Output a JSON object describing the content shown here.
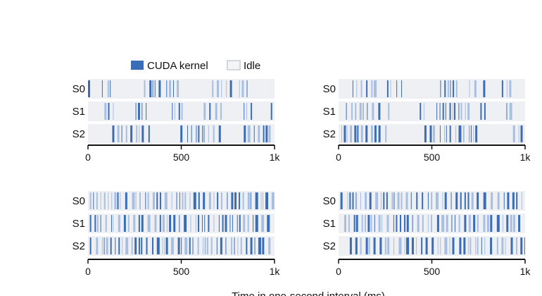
{
  "legend": {
    "items": [
      {
        "label": "CUDA kernel",
        "color": "#3a6db8",
        "style": "filled"
      },
      {
        "label": "Idle",
        "color": "#dfe3e8",
        "style": "outlined"
      }
    ]
  },
  "colors": {
    "kernel": "#3a6db8",
    "kernel_light": "#a9bfe2",
    "idle": "#eef0f3",
    "axis": "#111111"
  },
  "chart_data": [
    {
      "type": "timeline",
      "panel": "top-left",
      "rows": [
        "S0",
        "S1",
        "S2"
      ],
      "xlim": [
        0,
        1000
      ],
      "ticks": [
        0,
        500,
        1000
      ],
      "tick_labels": [
        "0",
        "500",
        "1k"
      ],
      "kernels": {
        "S0": [
          [
            0,
            28
          ],
          [
            75,
            122
          ],
          [
            300,
            385
          ],
          [
            420,
            488
          ],
          [
            665,
            770
          ],
          [
            810,
            860
          ]
        ],
        "S1": [
          [
            88,
            150
          ],
          [
            255,
            330
          ],
          [
            450,
            525
          ],
          [
            620,
            730
          ],
          [
            835,
            900
          ],
          [
            980,
            990
          ]
        ],
        "S2": [
          [
            130,
            330
          ],
          [
            495,
            705
          ],
          [
            835,
            990
          ]
        ]
      }
    },
    {
      "type": "timeline",
      "panel": "top-right",
      "rows": [
        "S0",
        "S1",
        "S2"
      ],
      "xlim": [
        0,
        1000
      ],
      "ticks": [
        0,
        500,
        1000
      ],
      "tick_labels": [
        "0",
        "500",
        "1k"
      ],
      "kernels": {
        "S0": [
          [
            75,
            150
          ],
          [
            175,
            200
          ],
          [
            260,
            280
          ],
          [
            310,
            345
          ],
          [
            545,
            650
          ],
          [
            700,
            730
          ],
          [
            775,
            790
          ],
          [
            875,
            920
          ]
        ],
        "S1": [
          [
            40,
            230
          ],
          [
            265,
            290
          ],
          [
            435,
            465
          ],
          [
            525,
            700
          ],
          [
            760,
            785
          ],
          [
            900,
            920
          ]
        ],
        "S2": [
          [
            15,
            255
          ],
          [
            460,
            740
          ],
          [
            935,
            1000
          ]
        ]
      }
    },
    {
      "type": "timeline",
      "panel": "bottom-left",
      "rows": [
        "S0",
        "S1",
        "S2"
      ],
      "xlim": [
        0,
        1000
      ],
      "ticks": [
        0,
        500,
        1000
      ],
      "tick_labels": [
        "0",
        "500",
        "1k"
      ],
      "kernels": {
        "S0": [
          [
            10,
            1000
          ]
        ],
        "S1": [
          [
            10,
            1000
          ]
        ],
        "S2": [
          [
            10,
            1000
          ]
        ]
      }
    },
    {
      "type": "timeline",
      "panel": "bottom-right",
      "rows": [
        "S0",
        "S1",
        "S2"
      ],
      "xlim": [
        0,
        1000
      ],
      "ticks": [
        0,
        500,
        1000
      ],
      "tick_labels": [
        "0",
        "500",
        "1k"
      ],
      "kernels": {
        "S0": [
          [
            10,
            1000
          ]
        ],
        "S1": [
          [
            30,
            1000
          ]
        ],
        "S2": [
          [
            60,
            1000
          ]
        ]
      }
    }
  ],
  "xlabel": "Time in one-second interval (ms)"
}
